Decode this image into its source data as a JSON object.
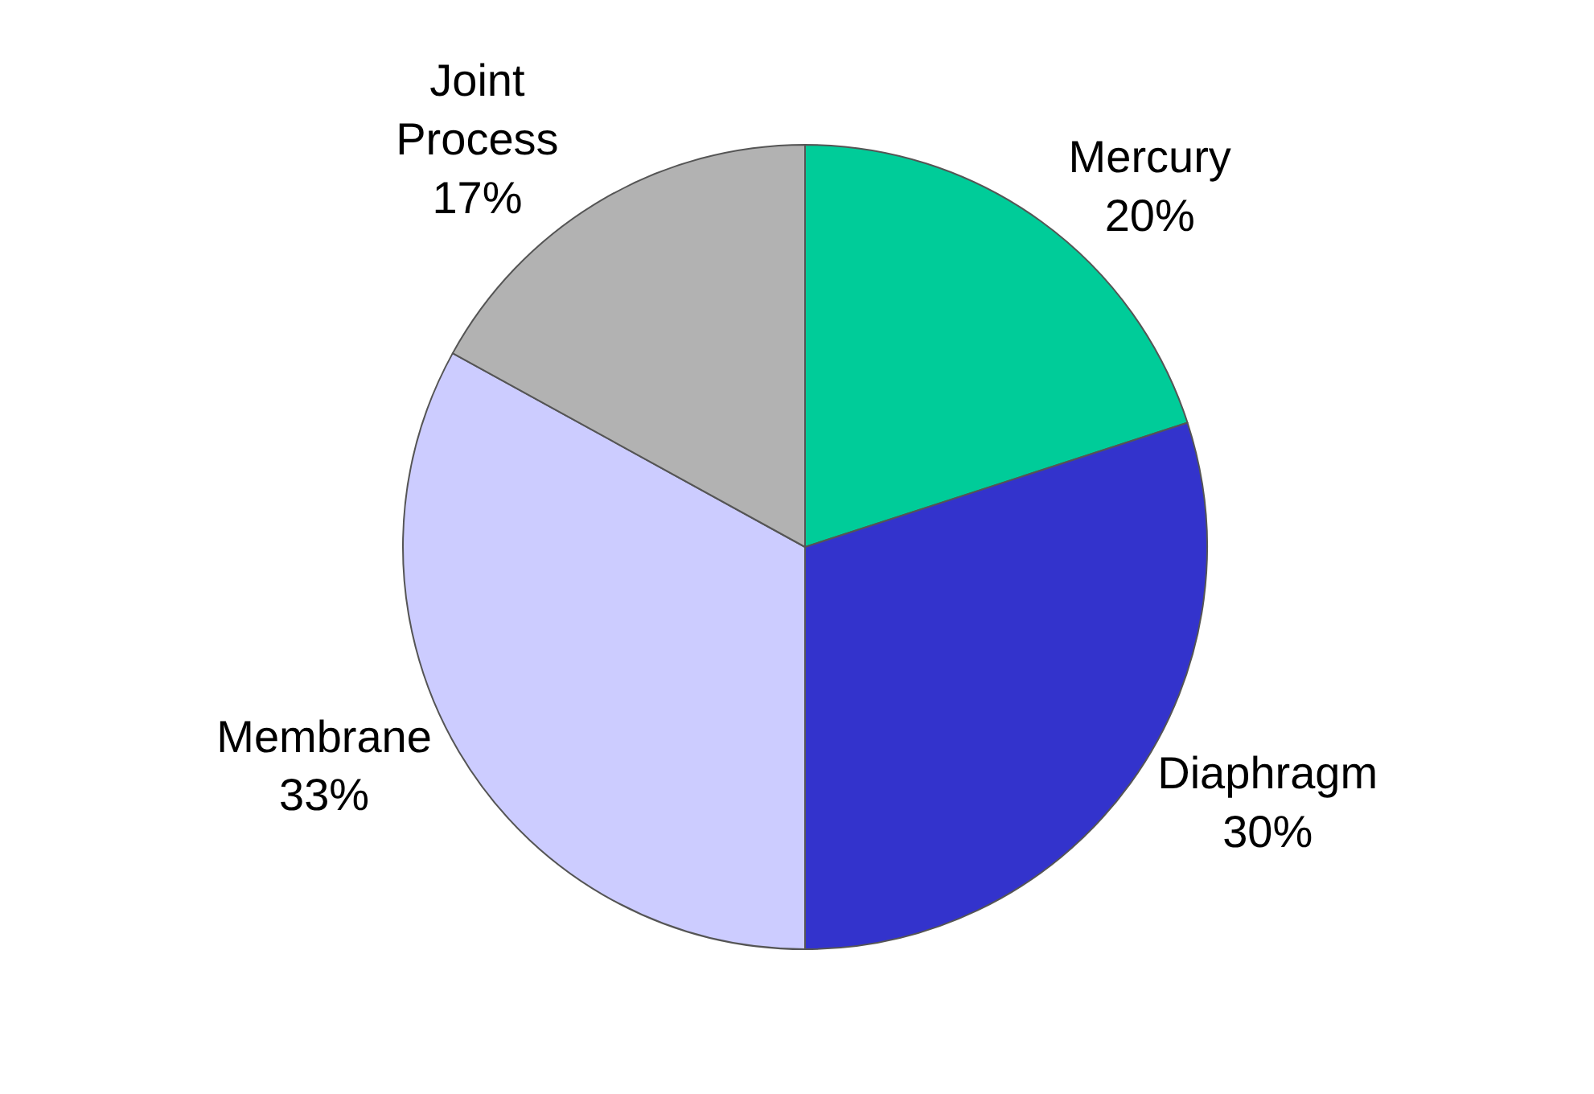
{
  "chart_data": {
    "type": "pie",
    "categories": [
      "Mercury",
      "Diaphragm",
      "Membrane",
      "Joint Process"
    ],
    "values": [
      20,
      30,
      33,
      17
    ],
    "colors": [
      "#00cc99",
      "#3333cc",
      "#ccccff",
      "#b2b2b2"
    ],
    "value_labels": [
      "20%",
      "30%",
      "33%",
      "17%"
    ],
    "legend": false
  }
}
